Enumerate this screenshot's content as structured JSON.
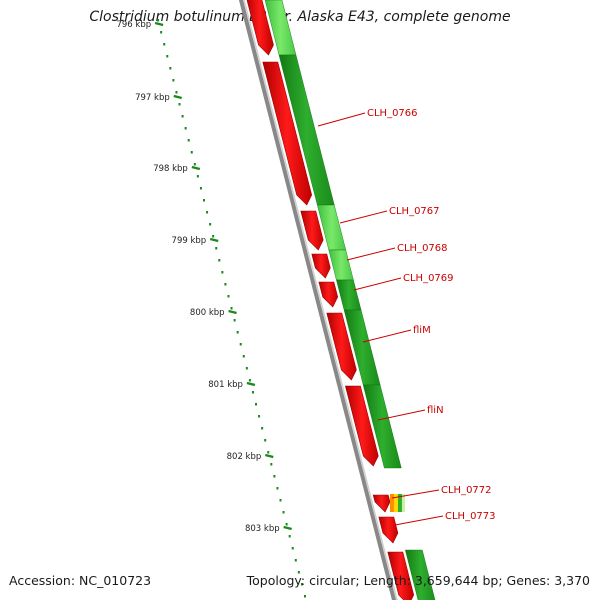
{
  "title": "Clostridium botulinum E3 str. Alaska E43, complete genome",
  "accession": "Accession: NC_010723",
  "summary": "Topology: circular; Length: 3,659,644 bp; Genes: 3,370",
  "ticks": [
    "796 kbp",
    "797 kbp",
    "798 kbp",
    "799 kbp",
    "800 kbp",
    "801 kbp",
    "802 kbp",
    "803 kbp"
  ],
  "genes": [
    "CLH_0766",
    "CLH_0767",
    "CLH_0768",
    "CLH_0769",
    "fliM",
    "fliN",
    "CLH_0772",
    "CLH_0773"
  ],
  "colors": {
    "cds": "#ff0000",
    "gc_high": "#22aa22",
    "gc_low": "#66dd44",
    "backbone": "#888888",
    "label": "#cc0000",
    "tick": "#1a8a1a"
  }
}
